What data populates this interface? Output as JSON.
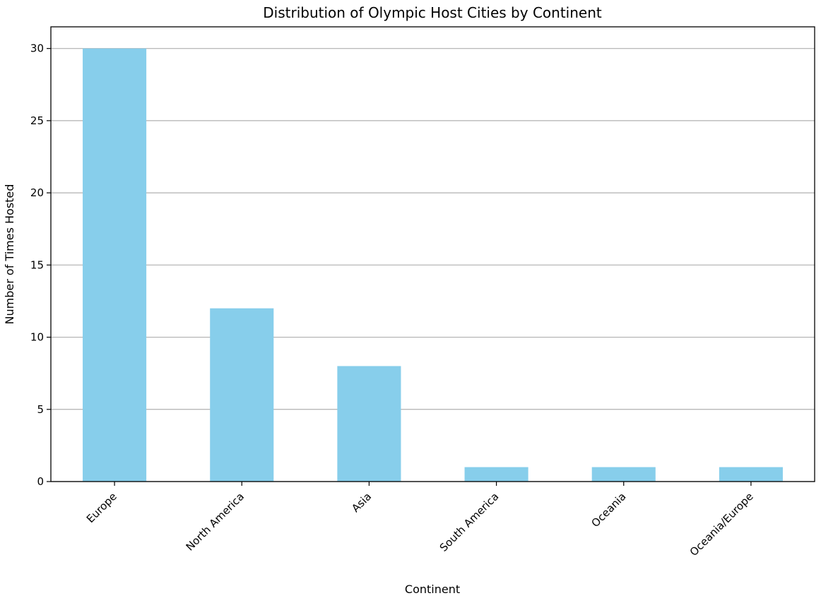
{
  "chart_data": {
    "type": "bar",
    "title": "Distribution of Olympic Host Cities by Continent",
    "xlabel": "Continent",
    "ylabel": "Number of Times Hosted",
    "categories": [
      "Europe",
      "North America",
      "Asia",
      "South America",
      "Oceania",
      "Oceania/Europe"
    ],
    "values": [
      30,
      12,
      8,
      1,
      1,
      1
    ],
    "ylim": [
      0,
      31.5
    ],
    "yticks": [
      0,
      5,
      10,
      15,
      20,
      25,
      30
    ],
    "grid": "y-axis",
    "legend": "none",
    "bar_color": "#87ceeb",
    "xtick_rotation": 45
  }
}
